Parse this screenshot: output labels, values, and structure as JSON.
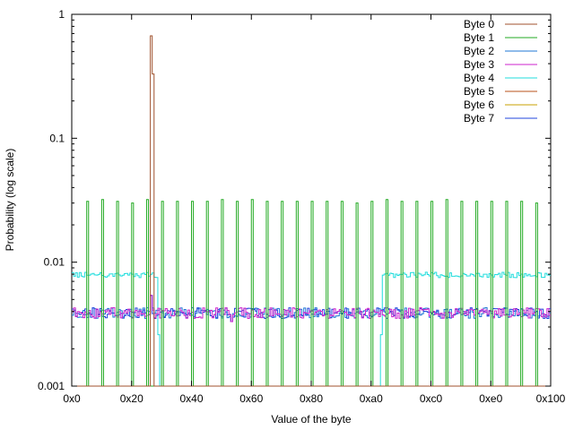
{
  "chart_data": {
    "type": "line",
    "xlabel": "Value of the byte",
    "ylabel": "Probability (log scale)",
    "xlim": [
      0,
      256
    ],
    "ylim": [
      0.001,
      1
    ],
    "yscale": "log",
    "grid": false,
    "legend_position": "top-right",
    "x_ticks": [
      {
        "value": 0,
        "label": "0x0"
      },
      {
        "value": 32,
        "label": "0x20"
      },
      {
        "value": 64,
        "label": "0x40"
      },
      {
        "value": 96,
        "label": "0x60"
      },
      {
        "value": 128,
        "label": "0x80"
      },
      {
        "value": 160,
        "label": "0xa0"
      },
      {
        "value": 192,
        "label": "0xc0"
      },
      {
        "value": 224,
        "label": "0xe0"
      },
      {
        "value": 256,
        "label": "0x100"
      }
    ],
    "y_ticks": [
      {
        "value": 0.001,
        "label": "0.001"
      },
      {
        "value": 0.01,
        "label": "0.01"
      },
      {
        "value": 0.1,
        "label": "0.1"
      },
      {
        "value": 1,
        "label": "1"
      }
    ],
    "series": [
      {
        "name": "Byte 0",
        "color": "#a0522d",
        "baseline": 0.0,
        "peaks": [
          {
            "x": 42,
            "y": 0.67
          },
          {
            "x": 43,
            "y": 0.33
          }
        ]
      },
      {
        "name": "Byte 1",
        "color": "#22aa22",
        "baseline": 0.001,
        "peaks": [
          {
            "x": 8,
            "y": 0.031
          },
          {
            "x": 16,
            "y": 0.032
          },
          {
            "x": 24,
            "y": 0.031
          },
          {
            "x": 32,
            "y": 0.03
          },
          {
            "x": 40,
            "y": 0.032
          },
          {
            "x": 48,
            "y": 0.031
          },
          {
            "x": 56,
            "y": 0.031
          },
          {
            "x": 64,
            "y": 0.031
          },
          {
            "x": 72,
            "y": 0.031
          },
          {
            "x": 80,
            "y": 0.032
          },
          {
            "x": 88,
            "y": 0.031
          },
          {
            "x": 96,
            "y": 0.032
          },
          {
            "x": 104,
            "y": 0.031
          },
          {
            "x": 112,
            "y": 0.031
          },
          {
            "x": 120,
            "y": 0.031
          },
          {
            "x": 128,
            "y": 0.031
          },
          {
            "x": 136,
            "y": 0.031
          },
          {
            "x": 144,
            "y": 0.031
          },
          {
            "x": 152,
            "y": 0.03
          },
          {
            "x": 160,
            "y": 0.031
          },
          {
            "x": 168,
            "y": 0.032
          },
          {
            "x": 176,
            "y": 0.031
          },
          {
            "x": 184,
            "y": 0.031
          },
          {
            "x": 192,
            "y": 0.031
          },
          {
            "x": 200,
            "y": 0.032
          },
          {
            "x": 208,
            "y": 0.031
          },
          {
            "x": 216,
            "y": 0.031
          },
          {
            "x": 224,
            "y": 0.031
          },
          {
            "x": 232,
            "y": 0.031
          },
          {
            "x": 240,
            "y": 0.031
          },
          {
            "x": 248,
            "y": 0.03
          }
        ]
      },
      {
        "name": "Byte 2",
        "color": "#1f77d4",
        "baseline": 0.0039
      },
      {
        "name": "Byte 3",
        "color": "#cc22cc",
        "baseline": 0.0039
      },
      {
        "name": "Byte 4",
        "color": "#22dddd",
        "segments": [
          {
            "from": 0,
            "to": 46,
            "y": 0.0079
          },
          {
            "from": 46,
            "to": 166,
            "y": 0.001
          },
          {
            "from": 166,
            "to": 256,
            "y": 0.0079
          }
        ]
      },
      {
        "name": "Byte 5",
        "color": "#b8501a",
        "baseline": 0.0
      },
      {
        "name": "Byte 6",
        "color": "#c8a000",
        "baseline": 0.0
      },
      {
        "name": "Byte 7",
        "color": "#2244dd",
        "baseline": 0.0039
      }
    ]
  }
}
